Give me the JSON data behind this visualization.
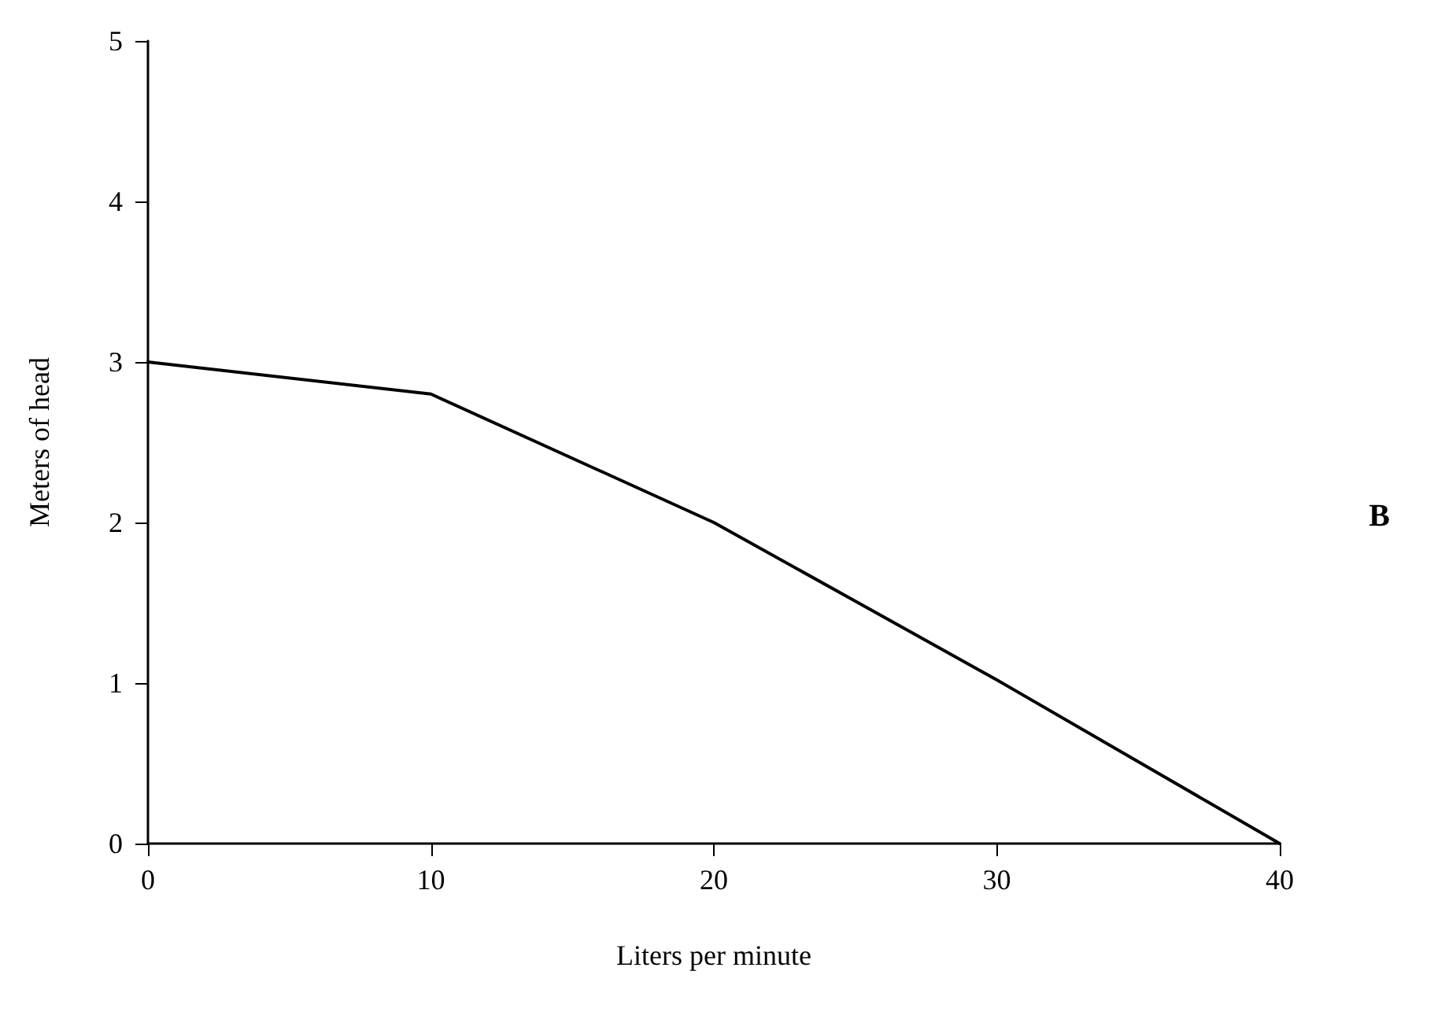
{
  "chart_data": {
    "type": "line",
    "xlabel": "Liters per minute",
    "ylabel": "Meters of head",
    "annotations": [
      "B"
    ],
    "x": [
      0,
      10,
      20,
      30,
      40
    ],
    "series": [
      {
        "color": "#000000",
        "values": [
          3,
          2.8,
          2,
          1.02,
          0
        ]
      }
    ],
    "xlim": [
      0,
      40
    ],
    "xticks": [
      0,
      10,
      20,
      30,
      40
    ],
    "ylim": [
      0,
      5
    ],
    "yticks": [
      0,
      1,
      2,
      3,
      4,
      5
    ],
    "grid": false,
    "marker": "none",
    "line_style": "solid"
  }
}
